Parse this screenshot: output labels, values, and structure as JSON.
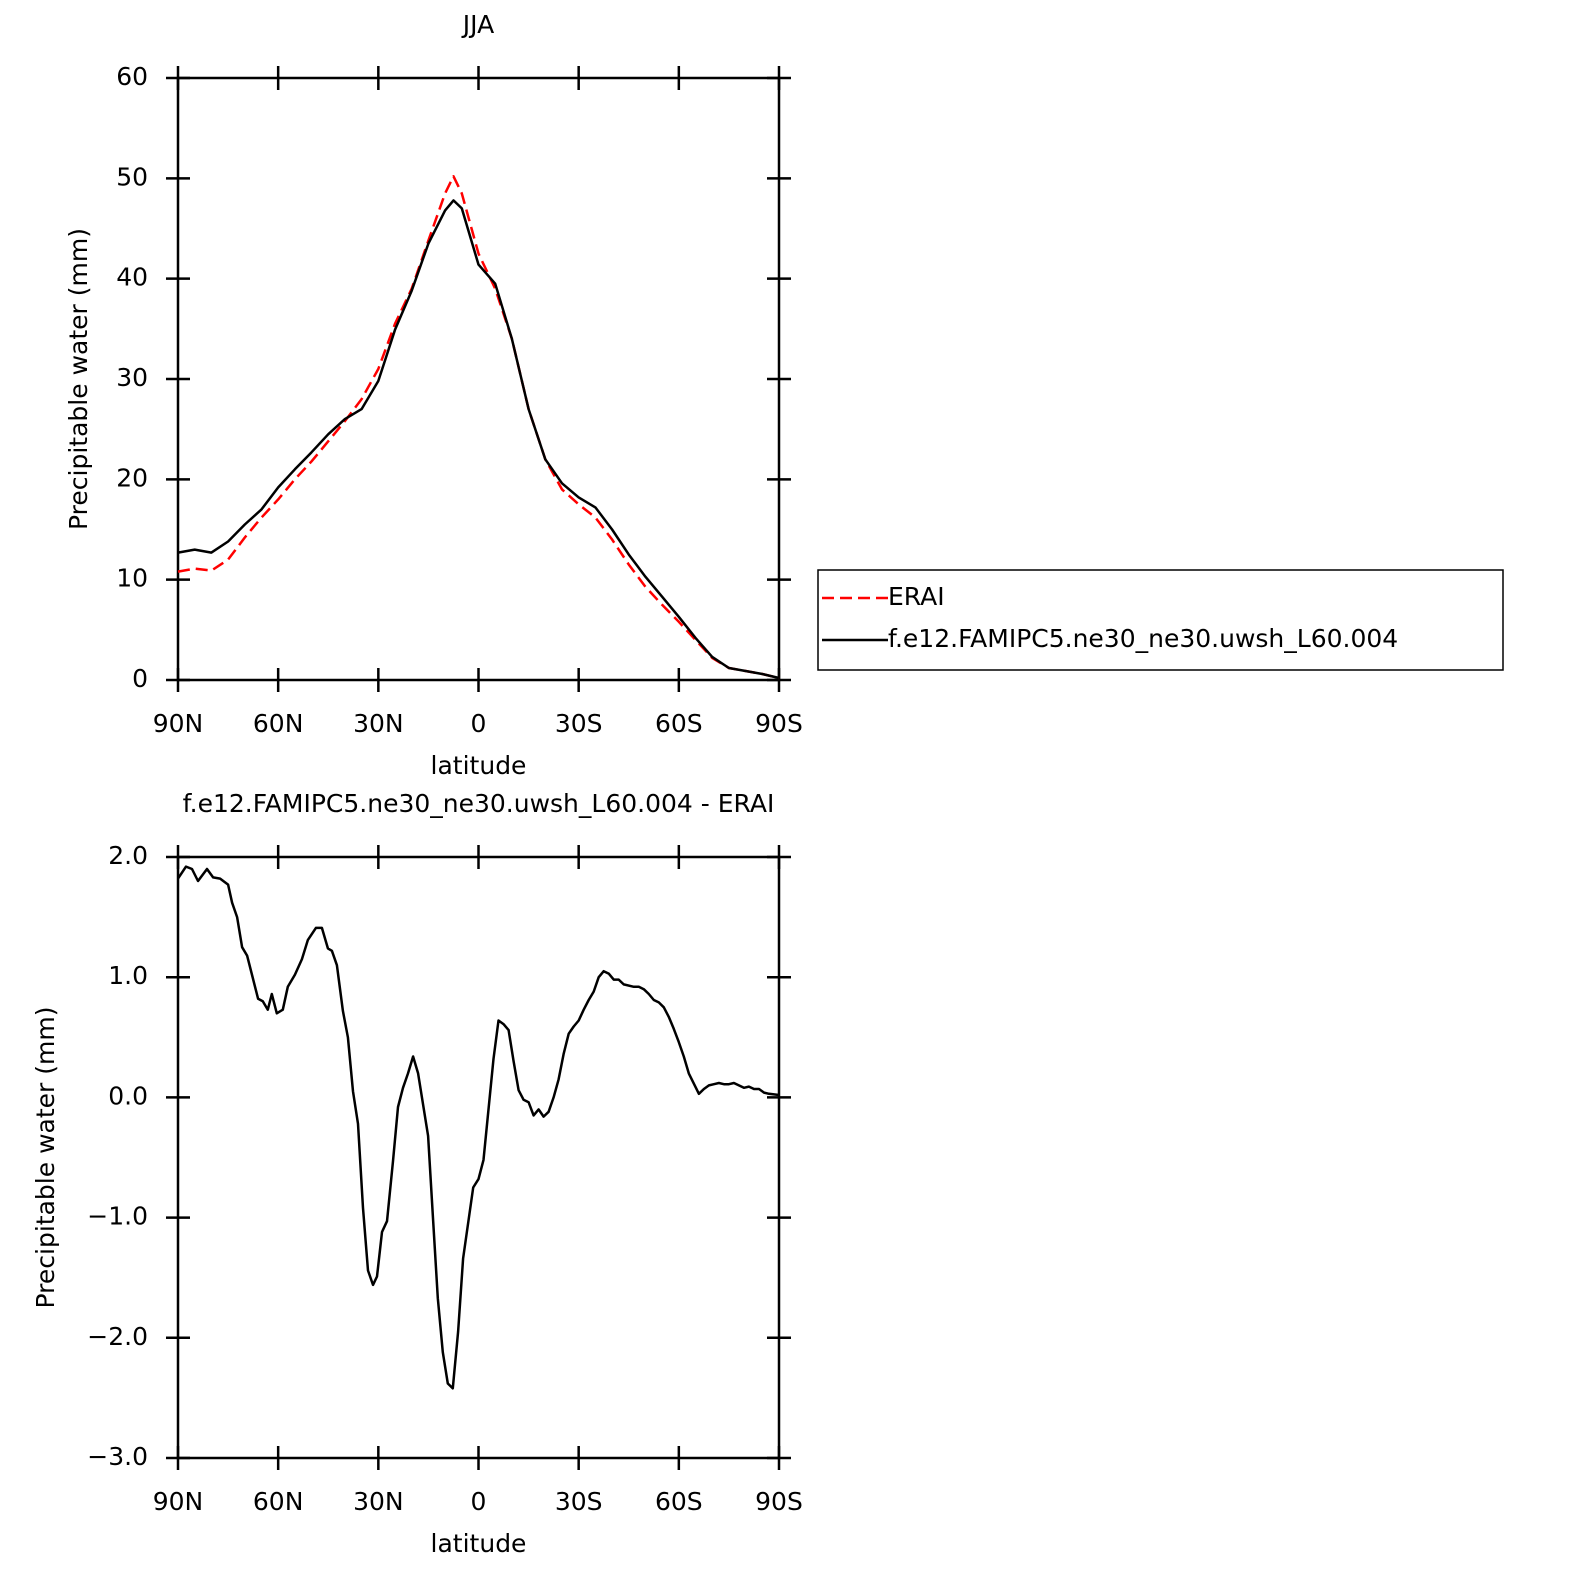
{
  "chart_data": [
    {
      "type": "line",
      "title": "JJA",
      "xlabel": "latitude",
      "ylabel": "Precipitable water (mm)",
      "x": [
        90,
        85,
        80,
        75,
        70,
        65,
        60,
        55,
        50,
        45,
        40,
        35,
        30,
        25,
        20,
        15,
        10,
        7.5,
        5,
        0,
        -5,
        -10,
        -15,
        -20,
        -25,
        -30,
        -35,
        -40,
        -45,
        -50,
        -55,
        -60,
        -65,
        -70,
        -75,
        -80,
        -85,
        -90
      ],
      "series": [
        {
          "name": "ERAI",
          "color": "#ff0000",
          "style": "dashed",
          "values": [
            10.8,
            11.1,
            10.9,
            12,
            14.2,
            16.2,
            18,
            20,
            21.8,
            23.8,
            25.8,
            28,
            31,
            35.5,
            39,
            43.8,
            48.5,
            50.2,
            48.5,
            42.5,
            39,
            34,
            27,
            22,
            19,
            17.5,
            16.2,
            14,
            11.5,
            9.3,
            7.5,
            5.8,
            4,
            2.2,
            1.2,
            0.9,
            0.6,
            0.2
          ]
        },
        {
          "name": "f.e12.FAMIPC5.ne30_ne30.uwsh_L60.004",
          "color": "#000000",
          "style": "solid",
          "values": [
            12.7,
            13,
            12.7,
            13.8,
            15.5,
            17,
            19.2,
            21,
            22.7,
            24.5,
            26,
            27,
            29.8,
            34.9,
            38.8,
            43.5,
            46.8,
            47.8,
            47,
            41.4,
            39.5,
            34,
            27,
            22,
            19.6,
            18.2,
            17.2,
            15,
            12.5,
            10.3,
            8.3,
            6.3,
            4.2,
            2.3,
            1.2,
            0.9,
            0.6,
            0.2
          ]
        }
      ],
      "xlim": [
        90,
        -90
      ],
      "xticks": [
        {
          "value": 90,
          "label": "90N"
        },
        {
          "value": 60,
          "label": "60N"
        },
        {
          "value": 30,
          "label": "30N"
        },
        0,
        {
          "value": -30,
          "label": "30S"
        },
        {
          "value": -60,
          "label": "60S"
        },
        {
          "value": -90,
          "label": "90S"
        }
      ],
      "ylim": [
        0,
        60
      ],
      "yticks": [
        0,
        10,
        20,
        30,
        40,
        50,
        60
      ],
      "legend": "right"
    },
    {
      "type": "line",
      "title": "f.e12.FAMIPC5.ne30_ne30.uwsh_L60.004 - ERAI",
      "xlabel": "latitude",
      "ylabel": "Precipitable water (mm)",
      "x": [
        90,
        87.6,
        85.8,
        84,
        81.3,
        79.5,
        77.4,
        75,
        73.8,
        72.3,
        70.8,
        69.3,
        66,
        64.6,
        63.1,
        61.9,
        60.4,
        58.6,
        57.1,
        55,
        52.9,
        51.1,
        48.7,
        46.9,
        45.1,
        43.9,
        42.4,
        40.6,
        39.1,
        37.6,
        36.1,
        34.6,
        33.1,
        31.6,
        30.4,
        28.9,
        27.4,
        25.6,
        24.1,
        22.6,
        21.1,
        19.6,
        18.1,
        15.1,
        13.6,
        12.2,
        10.7,
        9.2,
        7.7,
        6.1,
        4.6,
        1.6,
        0,
        -1.5,
        -3,
        -4.5,
        -6,
        -7.5,
        -9,
        -10.5,
        -12,
        -13.5,
        -15,
        -16.5,
        -18,
        -19.5,
        -21,
        -22.5,
        -24,
        -25.5,
        -27,
        -28.5,
        -30,
        -31.5,
        -33,
        -34.5,
        -36,
        -37.5,
        -39,
        -40.5,
        -42,
        -43.5,
        -46.5,
        -48,
        -49.5,
        -51,
        -52.5,
        -54,
        -55.5,
        -57,
        -58.5,
        -60,
        -61.5,
        -63,
        -66,
        -67.5,
        -69,
        -70.5,
        -72,
        -73.5,
        -75,
        -76.5,
        -78,
        -79.5,
        -81,
        -82.5,
        -84,
        -85.5,
        -87,
        -90
      ],
      "color": "#000000",
      "values": [
        1.82,
        1.92,
        1.9,
        1.8,
        1.9,
        1.83,
        1.82,
        1.77,
        1.62,
        1.5,
        1.25,
        1.18,
        0.82,
        0.8,
        0.73,
        0.86,
        0.7,
        0.73,
        0.92,
        1.02,
        1.15,
        1.31,
        1.41,
        1.41,
        1.24,
        1.22,
        1.1,
        0.72,
        0.5,
        0.05,
        -0.22,
        -0.92,
        -1.44,
        -1.56,
        -1.49,
        -1.12,
        -1.03,
        -0.53,
        -0.08,
        0.08,
        0.2,
        0.34,
        0.2,
        -0.32,
        -1.02,
        -1.67,
        -2.12,
        -2.38,
        -2.42,
        -1.95,
        -1.34,
        -0.75,
        -0.68,
        -0.52,
        -0.1,
        0.32,
        0.64,
        0.61,
        0.56,
        0.3,
        0.06,
        -0.02,
        -0.04,
        -0.15,
        -0.1,
        -0.16,
        -0.12,
        0,
        0.15,
        0.36,
        0.53,
        0.59,
        0.64,
        0.73,
        0.81,
        0.88,
        1,
        1.05,
        1.03,
        0.98,
        0.98,
        0.94,
        0.92,
        0.92,
        0.9,
        0.86,
        0.81,
        0.79,
        0.75,
        0.67,
        0.57,
        0.46,
        0.34,
        0.2,
        0.03,
        0.07,
        0.1,
        0.11,
        0.12,
        0.11,
        0.11,
        0.12,
        0.1,
        0.08,
        0.09,
        0.07,
        0.07,
        0.04,
        0.03,
        0.02
      ],
      "xlim": [
        90,
        -90
      ],
      "xticks": [
        {
          "value": 90,
          "label": "90N"
        },
        {
          "value": 60,
          "label": "60N"
        },
        {
          "value": 30,
          "label": "30N"
        },
        0,
        {
          "value": -30,
          "label": "30S"
        },
        {
          "value": -60,
          "label": "60S"
        },
        {
          "value": -90,
          "label": "90S"
        }
      ],
      "ylim": [
        -3,
        2
      ],
      "yticks": [
        {
          "value": -3,
          "label": "−3.0"
        },
        {
          "value": -2,
          "label": "−2.0"
        },
        {
          "value": -1,
          "label": "−1.0"
        },
        {
          "value": 0,
          "label": "0.0"
        },
        {
          "value": 1,
          "label": "1.0"
        },
        {
          "value": 2,
          "label": "2.0"
        }
      ]
    }
  ]
}
